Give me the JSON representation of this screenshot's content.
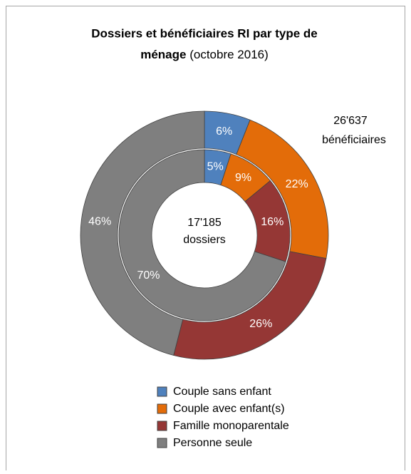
{
  "chart_data": {
    "type": "donut",
    "title": "Dossiers et bénéficiaires RI par type de",
    "title_line2": "ménage",
    "subtitle": "(octobre 2016)",
    "categories": [
      "Couple sans enfant",
      "Couple avec enfant(s)",
      "Famille monoparentale",
      "Personne seule"
    ],
    "colors": [
      "#4f81bd",
      "#e36c09",
      "#953735",
      "#7f7f7f"
    ],
    "series": [
      {
        "values": [
          6,
          22,
          26,
          46
        ],
        "value_labels": [
          "6%",
          "22%",
          "26%",
          "46%"
        ]
      },
      {
        "values": [
          5,
          9,
          16,
          70
        ],
        "value_labels": [
          "5%",
          "9%",
          "16%",
          "70%"
        ]
      }
    ],
    "annotations": [
      [
        "26'637",
        "bénéficiaires"
      ],
      [
        "17'185",
        "dossiers"
      ]
    ],
    "legend": "bottom"
  }
}
